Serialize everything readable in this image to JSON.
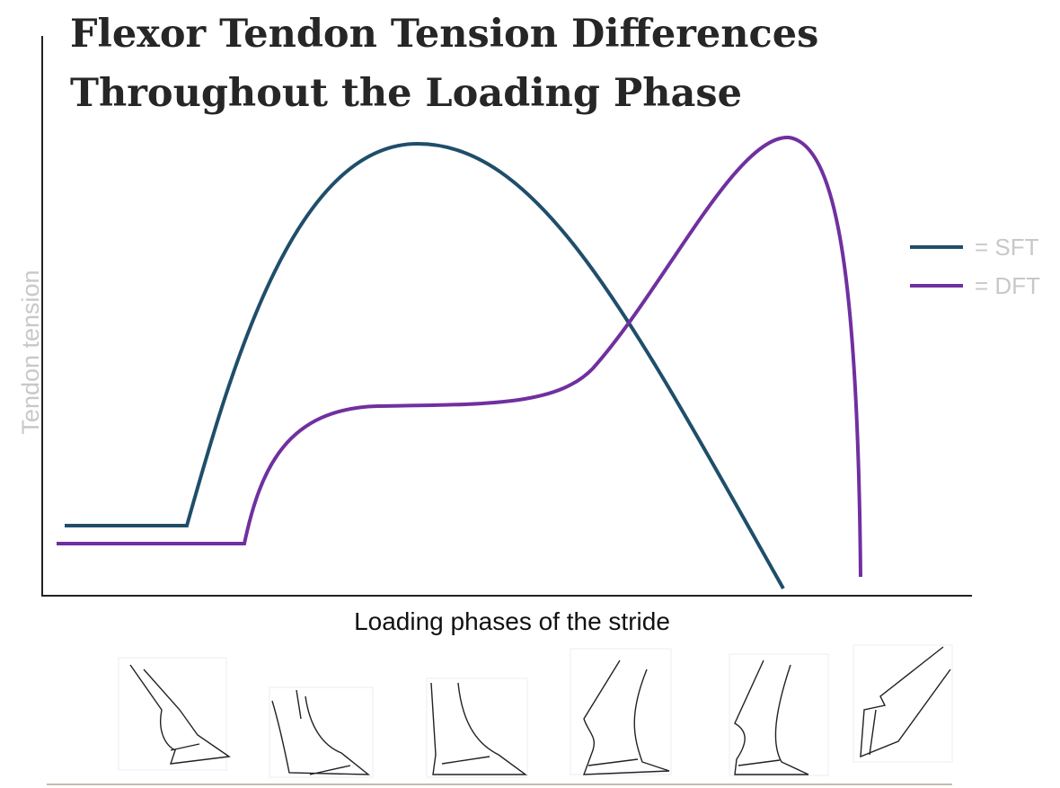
{
  "title": [
    "Flexor Tendon Tension Differences",
    "Throughout the Loading Phase"
  ],
  "y_axis_label": "Tendon tension",
  "x_axis_label": "Loading phases of the stride",
  "legend": [
    {
      "label": "= SFT",
      "color": "#1f4e6b"
    },
    {
      "label": "= DFT",
      "color": "#7030a0"
    }
  ]
}
